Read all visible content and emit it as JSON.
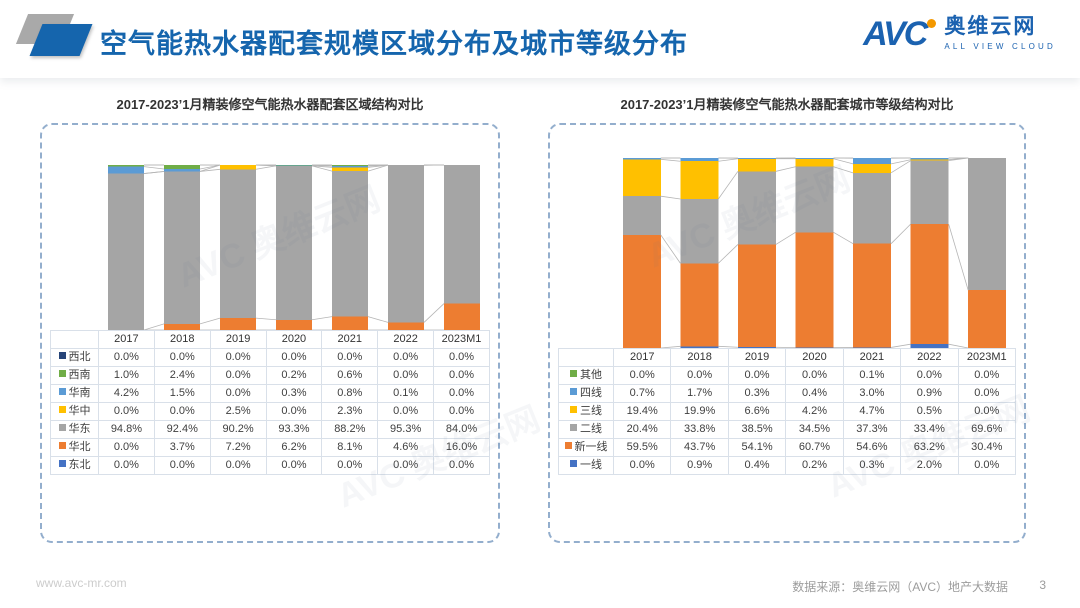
{
  "header": {
    "title": "空气能热水器配套规模区域分布及城市等级分布",
    "logo": {
      "name": "AVC",
      "cn": "奥维云网",
      "en": "ALL VIEW CLOUD"
    }
  },
  "watermark": {
    "text": "AVC 奥维云网"
  },
  "colors": {
    "brand_blue": "#1565ad",
    "brand_orange": "#f39800",
    "panel_border": "#93aecd",
    "connector_line": "#b5b5b5"
  },
  "footer": {
    "website": "www.avc-mr.com",
    "source": "数据来源：奥维云网（AVC）地产大数据",
    "page": "3"
  },
  "chart_data": [
    {
      "type": "bar",
      "stacked": true,
      "percent_of_total": true,
      "title": "2017-2023’1月精装修空气能热水器配套区域结构对比",
      "categories": [
        "2017",
        "2018",
        "2019",
        "2020",
        "2021",
        "2022",
        "2023M1"
      ],
      "series": [
        {
          "name": "西北",
          "color": "#264478",
          "values": [
            0.0,
            0.0,
            0.0,
            0.0,
            0.0,
            0.0,
            0.0
          ]
        },
        {
          "name": "西南",
          "color": "#70AD47",
          "values": [
            1.0,
            2.4,
            0.0,
            0.2,
            0.6,
            0.0,
            0.0
          ]
        },
        {
          "name": "华南",
          "color": "#5B9BD5",
          "values": [
            4.2,
            1.5,
            0.0,
            0.3,
            0.8,
            0.1,
            0.0
          ]
        },
        {
          "name": "华中",
          "color": "#FFC000",
          "values": [
            0.0,
            0.0,
            2.5,
            0.0,
            2.3,
            0.0,
            0.0
          ]
        },
        {
          "name": "华东",
          "color": "#A5A5A5",
          "values": [
            94.8,
            92.4,
            90.2,
            93.3,
            88.2,
            95.3,
            84.0
          ]
        },
        {
          "name": "华北",
          "color": "#ED7D31",
          "values": [
            0.0,
            3.7,
            7.2,
            6.2,
            8.1,
            4.6,
            16.0
          ]
        },
        {
          "name": "东北",
          "color": "#4472C4",
          "values": [
            0.0,
            0.0,
            0.0,
            0.0,
            0.0,
            0.0,
            0.0
          ]
        }
      ],
      "stack_order": "legend list is top-to-bottom of stack; bars are 100% stacked with series connector lines",
      "xlabel": "",
      "ylabel": "",
      "ylim": [
        0,
        100
      ],
      "legend_position": "table-left",
      "grid": false,
      "values_format": "0.0%"
    },
    {
      "type": "bar",
      "stacked": true,
      "percent_of_total": true,
      "title": "2017-2023’1月精装修空气能热水器配套城市等级结构对比",
      "categories": [
        "2017",
        "2018",
        "2019",
        "2020",
        "2021",
        "2022",
        "2023M1"
      ],
      "series": [
        {
          "name": "其他",
          "color": "#70AD47",
          "values": [
            0.0,
            0.0,
            0.0,
            0.0,
            0.1,
            0.0,
            0.0
          ]
        },
        {
          "name": "四线",
          "color": "#5B9BD5",
          "values": [
            0.7,
            1.7,
            0.3,
            0.4,
            3.0,
            0.9,
            0.0
          ]
        },
        {
          "name": "三线",
          "color": "#FFC000",
          "values": [
            19.4,
            19.9,
            6.6,
            4.2,
            4.7,
            0.5,
            0.0
          ]
        },
        {
          "name": "二线",
          "color": "#A5A5A5",
          "values": [
            20.4,
            33.8,
            38.5,
            34.5,
            37.3,
            33.4,
            69.6
          ]
        },
        {
          "name": "新一线",
          "color": "#ED7D31",
          "values": [
            59.5,
            43.7,
            54.1,
            60.7,
            54.6,
            63.2,
            30.4
          ]
        },
        {
          "name": "一线",
          "color": "#4472C4",
          "values": [
            0.0,
            0.9,
            0.4,
            0.2,
            0.3,
            2.0,
            0.0
          ]
        }
      ],
      "stack_order": "legend list is top-to-bottom of stack; bars are 100% stacked with series connector lines",
      "xlabel": "",
      "ylabel": "",
      "ylim": [
        0,
        100
      ],
      "legend_position": "table-left",
      "grid": false,
      "values_format": "0.0%"
    }
  ]
}
